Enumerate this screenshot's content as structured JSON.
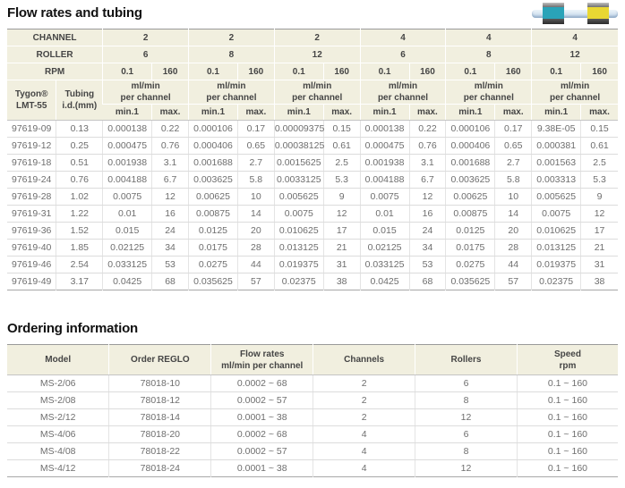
{
  "sections": {
    "flow_title": "Flow rates and tubing",
    "ordering_title": "Ordering information"
  },
  "tubing_image": {
    "description": "tubing with two color-code stops",
    "tube_color": "#d9e6f2",
    "stop_colors": [
      "#2aa3b8",
      "#e9d733"
    ]
  },
  "colors": {
    "header_bg": "#f1efdf",
    "table_top_border": "#999999",
    "data_text": "#6e6e6e"
  },
  "flow_table": {
    "channel_label": "CHANNEL",
    "roller_label": "ROLLER",
    "rpm_label": "RPM",
    "channels": [
      "2",
      "2",
      "2",
      "4",
      "4",
      "4"
    ],
    "rollers": [
      "6",
      "8",
      "12",
      "6",
      "8",
      "12"
    ],
    "rpm_values": [
      "0.1",
      "160",
      "0.1",
      "160",
      "0.1",
      "160",
      "0.1",
      "160",
      "0.1",
      "160",
      "0.1",
      "160"
    ],
    "tygon_header": "Tygon®\nLMT-55",
    "tubing_id_header": "Tubing\ni.d.(mm)",
    "unit_header": "ml/min\nper channel",
    "min_label": "min.1",
    "max_label": "max.",
    "rows": [
      {
        "model": "97619-09",
        "tubing_id": "0.13",
        "values": [
          "0.000138",
          "0.22",
          "0.000106",
          "0.17",
          "0.00009375",
          "0.15",
          "0.000138",
          "0.22",
          "0.000106",
          "0.17",
          "9.38E-05",
          "0.15"
        ]
      },
      {
        "model": "97619-12",
        "tubing_id": "0.25",
        "values": [
          "0.000475",
          "0.76",
          "0.000406",
          "0.65",
          "0.00038125",
          "0.61",
          "0.000475",
          "0.76",
          "0.000406",
          "0.65",
          "0.000381",
          "0.61"
        ]
      },
      {
        "model": "97619-18",
        "tubing_id": "0.51",
        "values": [
          "0.001938",
          "3.1",
          "0.001688",
          "2.7",
          "0.0015625",
          "2.5",
          "0.001938",
          "3.1",
          "0.001688",
          "2.7",
          "0.001563",
          "2.5"
        ]
      },
      {
        "model": "97619-24",
        "tubing_id": "0.76",
        "values": [
          "0.004188",
          "6.7",
          "0.003625",
          "5.8",
          "0.0033125",
          "5.3",
          "0.004188",
          "6.7",
          "0.003625",
          "5.8",
          "0.003313",
          "5.3"
        ]
      },
      {
        "model": "97619-28",
        "tubing_id": "1.02",
        "values": [
          "0.0075",
          "12",
          "0.00625",
          "10",
          "0.005625",
          "9",
          "0.0075",
          "12",
          "0.00625",
          "10",
          "0.005625",
          "9"
        ]
      },
      {
        "model": "97619-31",
        "tubing_id": "1.22",
        "values": [
          "0.01",
          "16",
          "0.00875",
          "14",
          "0.0075",
          "12",
          "0.01",
          "16",
          "0.00875",
          "14",
          "0.0075",
          "12"
        ]
      },
      {
        "model": "97619-36",
        "tubing_id": "1.52",
        "values": [
          "0.015",
          "24",
          "0.0125",
          "20",
          "0.010625",
          "17",
          "0.015",
          "24",
          "0.0125",
          "20",
          "0.010625",
          "17"
        ]
      },
      {
        "model": "97619-40",
        "tubing_id": "1.85",
        "values": [
          "0.02125",
          "34",
          "0.0175",
          "28",
          "0.013125",
          "21",
          "0.02125",
          "34",
          "0.0175",
          "28",
          "0.013125",
          "21"
        ]
      },
      {
        "model": "97619-46",
        "tubing_id": "2.54",
        "values": [
          "0.033125",
          "53",
          "0.0275",
          "44",
          "0.019375",
          "31",
          "0.033125",
          "53",
          "0.0275",
          "44",
          "0.019375",
          "31"
        ]
      },
      {
        "model": "97619-49",
        "tubing_id": "3.17",
        "values": [
          "0.0425",
          "68",
          "0.035625",
          "57",
          "0.02375",
          "38",
          "0.0425",
          "68",
          "0.035625",
          "57",
          "0.02375",
          "38"
        ]
      }
    ]
  },
  "ordering_table": {
    "headers": [
      "Model",
      "Order REGLO",
      "Flow rates\nml/min per channel",
      "Channels",
      "Rollers",
      "Speed\nrpm"
    ],
    "rows": [
      [
        "MS-2/06",
        "78018-10",
        "0.0002 ~ 68",
        "2",
        "6",
        "0.1 ~ 160"
      ],
      [
        "MS-2/08",
        "78018-12",
        "0.0002 ~ 57",
        "2",
        "8",
        "0.1 ~ 160"
      ],
      [
        "MS-2/12",
        "78018-14",
        "0.0001 ~ 38",
        "2",
        "12",
        "0.1 ~ 160"
      ],
      [
        "MS-4/06",
        "78018-20",
        "0.0002 ~ 68",
        "4",
        "6",
        "0.1 ~ 160"
      ],
      [
        "MS-4/08",
        "78018-22",
        "0.0002 ~ 57",
        "4",
        "8",
        "0.1 ~ 160"
      ],
      [
        "MS-4/12",
        "78018-24",
        "0.0001 ~ 38",
        "4",
        "12",
        "0.1 ~ 160"
      ]
    ]
  }
}
